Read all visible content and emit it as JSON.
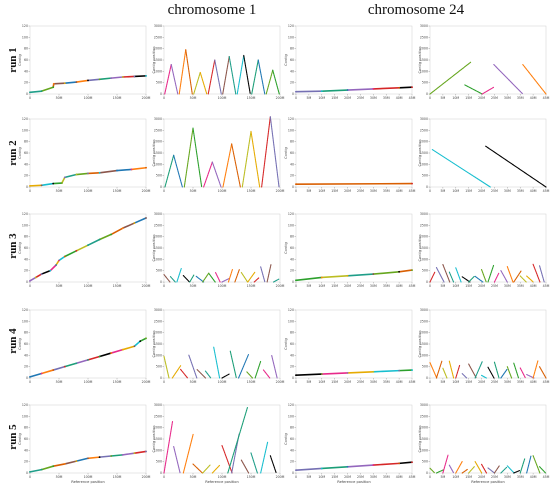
{
  "columns": [
    "chromosome 1",
    "chromosome 24"
  ],
  "rows": [
    "run 1",
    "run 2",
    "run 3",
    "run 4",
    "run 5"
  ],
  "axes": {
    "contig_ylabel": "Contig",
    "position_ylabel": "Contig position",
    "xlabel": "Reference position",
    "contig_yticks": [
      "0",
      "20",
      "40",
      "60",
      "80",
      "100",
      "120"
    ],
    "position_yticks": [
      "0",
      "500",
      "1000",
      "1500",
      "2000",
      "2500",
      "3000"
    ],
    "chr1_xticks": [
      "0",
      "50M",
      "100M",
      "150M",
      "200M"
    ],
    "chr24_xticks": [
      "0",
      "5M",
      "10M",
      "15M",
      "20M",
      "25M",
      "30M",
      "35M",
      "40M",
      "45M"
    ]
  },
  "palette": [
    "#1f9e89",
    "#e7298a",
    "#7570b3",
    "#66a61e",
    "#e6ab02",
    "#1b9e77",
    "#d95f02",
    "#17becf",
    "#9467bd",
    "#8c564b",
    "#2ca02c",
    "#d62728",
    "#1f77b4",
    "#bcbd22",
    "#000000",
    "#ff7f0e"
  ],
  "chart_data": [
    {
      "type": "line",
      "panel": "run 1 / chromosome 1 / contig",
      "xlim": [
        0,
        200
      ],
      "ylim": [
        0,
        120
      ],
      "x": [
        0,
        20,
        40,
        41,
        60,
        80,
        100,
        120,
        140,
        160,
        180,
        200
      ],
      "y": [
        3,
        5,
        12,
        18,
        19,
        21,
        24,
        26,
        28,
        30,
        31,
        32
      ]
    },
    {
      "type": "scatter",
      "panel": "run 1 / chromosome 1 / contig position",
      "pattern": "dense-diagonals",
      "xlim": [
        0,
        200
      ],
      "ylim": [
        0,
        3000
      ],
      "peaks": [
        1300,
        1950,
        950,
        1500,
        1650,
        1700,
        1500,
        1050
      ]
    },
    {
      "type": "line",
      "panel": "run 1 / chromosome 24 / contig",
      "xlim": [
        0,
        45
      ],
      "ylim": [
        0,
        120
      ],
      "x": [
        0,
        10,
        20,
        30,
        40,
        45
      ],
      "y": [
        4,
        5,
        7,
        9,
        11,
        12
      ]
    },
    {
      "type": "scatter",
      "panel": "run 1 / chromosome 24 / contig position",
      "pattern": "few-long-diagonals",
      "xlim": [
        0,
        45
      ],
      "ylim": [
        0,
        3000
      ]
    },
    {
      "type": "line",
      "panel": "run 2 / chromosome 1 / contig",
      "xlim": [
        0,
        200
      ],
      "ylim": [
        0,
        120
      ],
      "x": [
        0,
        20,
        40,
        55,
        60,
        80,
        100,
        120,
        150,
        175,
        200
      ],
      "y": [
        2,
        3,
        6,
        7,
        17,
        22,
        24,
        25,
        29,
        31,
        34
      ]
    },
    {
      "type": "scatter",
      "panel": "run 2 / chromosome 1 / contig position",
      "pattern": "dense-diagonals",
      "xlim": [
        0,
        200
      ],
      "ylim": [
        0,
        3000
      ],
      "peaks": [
        1400,
        2600,
        1100,
        1900,
        2450,
        3100
      ]
    },
    {
      "type": "line",
      "panel": "run 2 / chromosome 24 / contig",
      "xlim": [
        0,
        45
      ],
      "ylim": [
        0,
        120
      ],
      "x": [
        0,
        45
      ],
      "y": [
        5,
        6
      ]
    },
    {
      "type": "scatter",
      "panel": "run 2 / chromosome 24 / contig position",
      "pattern": "two-long-descending",
      "xlim": [
        0,
        45
      ],
      "ylim": [
        0,
        3000
      ]
    },
    {
      "type": "line",
      "panel": "run 3 / chromosome 1 / contig",
      "xlim": [
        0,
        200
      ],
      "ylim": [
        0,
        120
      ],
      "x": [
        0,
        10,
        20,
        35,
        45,
        50,
        60,
        80,
        100,
        120,
        140,
        160,
        180,
        200
      ],
      "y": [
        2,
        8,
        14,
        20,
        30,
        38,
        45,
        55,
        65,
        75,
        84,
        95,
        104,
        113
      ]
    },
    {
      "type": "scatter",
      "panel": "run 3 / chromosome 1 / contig position",
      "pattern": "short-zigzags",
      "xlim": [
        0,
        200
      ],
      "ylim": [
        0,
        3000
      ]
    },
    {
      "type": "line",
      "panel": "run 3 / chromosome 24 / contig",
      "xlim": [
        0,
        45
      ],
      "ylim": [
        0,
        120
      ],
      "x": [
        0,
        10,
        20,
        30,
        40,
        45
      ],
      "y": [
        3,
        8,
        11,
        14,
        18,
        21
      ]
    },
    {
      "type": "scatter",
      "panel": "run 3 / chromosome 24 / contig position",
      "pattern": "short-zigzags",
      "xlim": [
        0,
        45
      ],
      "ylim": [
        0,
        3000
      ]
    },
    {
      "type": "line",
      "panel": "run 4 / chromosome 1 / contig",
      "xlim": [
        0,
        200
      ],
      "ylim": [
        0,
        120
      ],
      "x": [
        0,
        20,
        40,
        60,
        80,
        100,
        120,
        140,
        160,
        180,
        190,
        200
      ],
      "y": [
        2,
        8,
        14,
        20,
        26,
        32,
        38,
        44,
        50,
        56,
        65,
        70
      ]
    },
    {
      "type": "scatter",
      "panel": "run 4 / chromosome 1 / contig position",
      "pattern": "medium-zigzags",
      "xlim": [
        0,
        200
      ],
      "ylim": [
        0,
        3000
      ]
    },
    {
      "type": "line",
      "panel": "run 4 / chromosome 24 / contig",
      "xlim": [
        0,
        45
      ],
      "ylim": [
        0,
        120
      ],
      "x": [
        0,
        10,
        20,
        30,
        40,
        45
      ],
      "y": [
        5,
        7,
        9,
        11,
        13,
        14
      ]
    },
    {
      "type": "scatter",
      "panel": "run 4 / chromosome 24 / contig position",
      "pattern": "short-zigzags",
      "xlim": [
        0,
        45
      ],
      "ylim": [
        0,
        3000
      ]
    },
    {
      "type": "line",
      "panel": "run 5 / chromosome 1 / contig",
      "xlim": [
        0,
        200
      ],
      "ylim": [
        0,
        120
      ],
      "x": [
        0,
        20,
        40,
        60,
        80,
        100,
        120,
        140,
        160,
        180,
        200
      ],
      "y": [
        2,
        6,
        12,
        16,
        21,
        26,
        28,
        30,
        32,
        35,
        38
      ]
    },
    {
      "type": "scatter",
      "panel": "run 5 / chromosome 1 / contig position",
      "pattern": "mixed-diagonals",
      "xlim": [
        0,
        200
      ],
      "ylim": [
        0,
        3000
      ]
    },
    {
      "type": "line",
      "panel": "run 5 / chromosome 24 / contig",
      "xlim": [
        0,
        45
      ],
      "ylim": [
        0,
        120
      ],
      "x": [
        0,
        10,
        20,
        30,
        40,
        45
      ],
      "y": [
        5,
        8,
        11,
        14,
        17,
        19
      ]
    },
    {
      "type": "scatter",
      "panel": "run 5 / chromosome 24 / contig position",
      "pattern": "short-zigzags",
      "xlim": [
        0,
        45
      ],
      "ylim": [
        0,
        3000
      ]
    }
  ]
}
